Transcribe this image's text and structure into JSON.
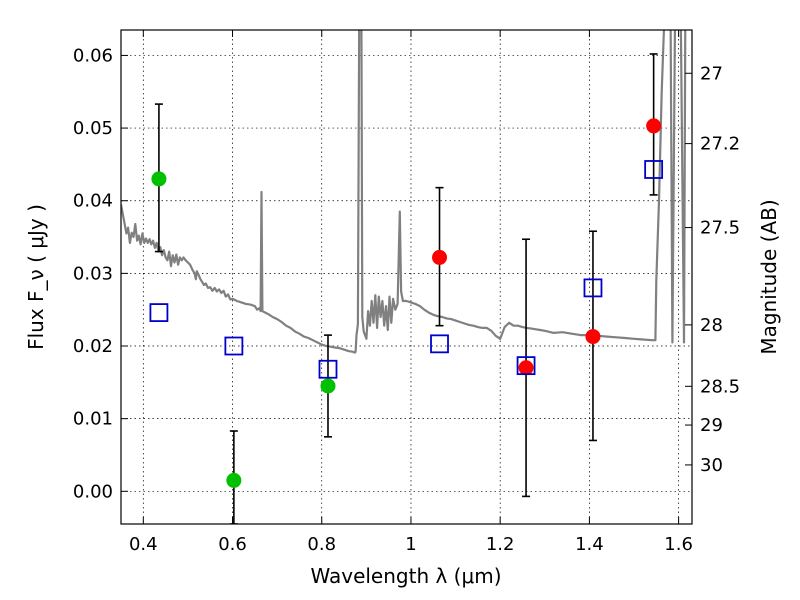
{
  "chart_data": {
    "type": "scatter",
    "xlabel": "Wavelength  λ (μm)",
    "ylabel": "Flux  F_ν  ( μJy )",
    "ylabel_right": "Magnitude (AB)",
    "xlim": [
      0.35,
      1.63
    ],
    "ylim": [
      -0.0045,
      0.0635
    ],
    "grid": true,
    "x_ticks": [
      0.4,
      0.6,
      0.8,
      1.0,
      1.2,
      1.4,
      1.6
    ],
    "x_tick_labels": [
      "0.4",
      "0.6",
      "0.8",
      "1",
      "1.2",
      "1.4",
      "1.6"
    ],
    "y_ticks": [
      0.0,
      0.01,
      0.02,
      0.03,
      0.04,
      0.05,
      0.06
    ],
    "y_tick_labels": [
      "0.00",
      "0.01",
      "0.02",
      "0.03",
      "0.04",
      "0.05",
      "0.06"
    ],
    "right_ticks": [
      27,
      27.2,
      27.5,
      28,
      28.5,
      29,
      30
    ],
    "right_tick_labels": [
      "27",
      "27.2",
      "27.5",
      "28",
      "28.5",
      "29",
      "30"
    ],
    "colors": {
      "template": "#808080",
      "green": "#00c000",
      "red": "#ff0000",
      "model": "#0000cc",
      "errorbar": "#000000"
    },
    "template_spectrum": [
      [
        0.35,
        0.0395
      ],
      [
        0.357,
        0.0372
      ],
      [
        0.362,
        0.0355
      ],
      [
        0.366,
        0.0363
      ],
      [
        0.37,
        0.0342
      ],
      [
        0.374,
        0.0356
      ],
      [
        0.378,
        0.035
      ],
      [
        0.382,
        0.0368
      ],
      [
        0.386,
        0.0345
      ],
      [
        0.39,
        0.0352
      ],
      [
        0.394,
        0.034
      ],
      [
        0.398,
        0.0355
      ],
      [
        0.402,
        0.0342
      ],
      [
        0.406,
        0.0348
      ],
      [
        0.41,
        0.0342
      ],
      [
        0.414,
        0.0347
      ],
      [
        0.418,
        0.034
      ],
      [
        0.422,
        0.0345
      ],
      [
        0.426,
        0.0335
      ],
      [
        0.43,
        0.0342
      ],
      [
        0.434,
        0.033
      ],
      [
        0.438,
        0.0336
      ],
      [
        0.442,
        0.0325
      ],
      [
        0.446,
        0.0332
      ],
      [
        0.45,
        0.0322
      ],
      [
        0.454,
        0.0318
      ],
      [
        0.458,
        0.033
      ],
      [
        0.462,
        0.031
      ],
      [
        0.466,
        0.0325
      ],
      [
        0.47,
        0.0315
      ],
      [
        0.474,
        0.0326
      ],
      [
        0.478,
        0.0312
      ],
      [
        0.482,
        0.0322
      ],
      [
        0.486,
        0.0318
      ],
      [
        0.49,
        0.0322
      ],
      [
        0.495,
        0.0318
      ],
      [
        0.5,
        0.0315
      ],
      [
        0.505,
        0.0312
      ],
      [
        0.51,
        0.0305
      ],
      [
        0.515,
        0.03
      ],
      [
        0.518,
        0.0292
      ],
      [
        0.52,
        0.0303
      ],
      [
        0.524,
        0.0298
      ],
      [
        0.528,
        0.0292
      ],
      [
        0.532,
        0.0288
      ],
      [
        0.536,
        0.0284
      ],
      [
        0.54,
        0.0286
      ],
      [
        0.545,
        0.028
      ],
      [
        0.55,
        0.0281
      ],
      [
        0.555,
        0.0276
      ],
      [
        0.56,
        0.028
      ],
      [
        0.565,
        0.0275
      ],
      [
        0.57,
        0.0278
      ],
      [
        0.575,
        0.0273
      ],
      [
        0.58,
        0.0276
      ],
      [
        0.585,
        0.0268
      ],
      [
        0.59,
        0.0271
      ],
      [
        0.595,
        0.0264
      ],
      [
        0.6,
        0.0265
      ],
      [
        0.61,
        0.0262
      ],
      [
        0.62,
        0.026
      ],
      [
        0.63,
        0.0258
      ],
      [
        0.64,
        0.0257
      ],
      [
        0.65,
        0.0255
      ],
      [
        0.655,
        0.025
      ],
      [
        0.66,
        0.0252
      ],
      [
        0.663,
        0.0248
      ],
      [
        0.665,
        0.0412
      ],
      [
        0.667,
        0.0248
      ],
      [
        0.67,
        0.0247
      ],
      [
        0.68,
        0.0244
      ],
      [
        0.69,
        0.024
      ],
      [
        0.7,
        0.0237
      ],
      [
        0.71,
        0.0233
      ],
      [
        0.72,
        0.0228
      ],
      [
        0.73,
        0.0225
      ],
      [
        0.74,
        0.022
      ],
      [
        0.75,
        0.0217
      ],
      [
        0.76,
        0.0213
      ],
      [
        0.77,
        0.0211
      ],
      [
        0.78,
        0.0208
      ],
      [
        0.79,
        0.0205
      ],
      [
        0.8,
        0.0202
      ],
      [
        0.81,
        0.02
      ],
      [
        0.82,
        0.0199
      ],
      [
        0.83,
        0.0198
      ],
      [
        0.84,
        0.0197
      ],
      [
        0.85,
        0.0195
      ],
      [
        0.86,
        0.0193
      ],
      [
        0.87,
        0.0192
      ],
      [
        0.874,
        0.0191
      ],
      [
        0.876,
        0.0192
      ],
      [
        0.878,
        0.0215
      ],
      [
        0.881,
        0.023
      ],
      [
        0.884,
        0.065
      ],
      [
        0.889,
        0.065
      ],
      [
        0.891,
        0.024
      ],
      [
        0.894,
        0.022
      ],
      [
        0.9,
        0.021
      ],
      [
        0.904,
        0.0248
      ],
      [
        0.908,
        0.0228
      ],
      [
        0.912,
        0.0262
      ],
      [
        0.916,
        0.0232
      ],
      [
        0.92,
        0.027
      ],
      [
        0.924,
        0.0225
      ],
      [
        0.928,
        0.0268
      ],
      [
        0.932,
        0.024
      ],
      [
        0.936,
        0.0262
      ],
      [
        0.94,
        0.0228
      ],
      [
        0.944,
        0.0255
      ],
      [
        0.948,
        0.0222
      ],
      [
        0.952,
        0.0268
      ],
      [
        0.956,
        0.0232
      ],
      [
        0.96,
        0.0265
      ],
      [
        0.965,
        0.025
      ],
      [
        0.97,
        0.0258
      ],
      [
        0.975,
        0.0385
      ],
      [
        0.978,
        0.0275
      ],
      [
        0.982,
        0.0262
      ],
      [
        0.99,
        0.0262
      ],
      [
        1.0,
        0.026
      ],
      [
        1.01,
        0.0258
      ],
      [
        1.02,
        0.0255
      ],
      [
        1.03,
        0.025
      ],
      [
        1.04,
        0.0246
      ],
      [
        1.05,
        0.0243
      ],
      [
        1.06,
        0.0241
      ],
      [
        1.07,
        0.024
      ],
      [
        1.08,
        0.0238
      ],
      [
        1.09,
        0.0237
      ],
      [
        1.1,
        0.0235
      ],
      [
        1.11,
        0.0233
      ],
      [
        1.12,
        0.0231
      ],
      [
        1.13,
        0.0229
      ],
      [
        1.14,
        0.0228
      ],
      [
        1.15,
        0.0226
      ],
      [
        1.16,
        0.0225
      ],
      [
        1.17,
        0.0225
      ],
      [
        1.18,
        0.0221
      ],
      [
        1.19,
        0.0214
      ],
      [
        1.2,
        0.021
      ],
      [
        1.21,
        0.0226
      ],
      [
        1.22,
        0.0232
      ],
      [
        1.23,
        0.0228
      ],
      [
        1.24,
        0.0228
      ],
      [
        1.25,
        0.0226
      ],
      [
        1.26,
        0.0225
      ],
      [
        1.27,
        0.0224
      ],
      [
        1.28,
        0.0223
      ],
      [
        1.29,
        0.0222
      ],
      [
        1.3,
        0.0221
      ],
      [
        1.32,
        0.0218
      ],
      [
        1.34,
        0.0219
      ],
      [
        1.36,
        0.0217
      ],
      [
        1.38,
        0.0215
      ],
      [
        1.4,
        0.0215
      ],
      [
        1.42,
        0.0214
      ],
      [
        1.44,
        0.0213
      ],
      [
        1.46,
        0.0212
      ],
      [
        1.48,
        0.0211
      ],
      [
        1.5,
        0.021
      ],
      [
        1.52,
        0.0209
      ],
      [
        1.54,
        0.0208
      ],
      [
        1.548,
        0.0208
      ],
      [
        1.55,
        0.029
      ],
      [
        1.556,
        0.04
      ],
      [
        1.562,
        0.055
      ],
      [
        1.568,
        0.065
      ],
      [
        1.575,
        0.065
      ],
      [
        1.582,
        0.065
      ],
      [
        1.586,
        0.0205
      ],
      [
        1.592,
        0.065
      ],
      [
        1.6,
        0.065
      ],
      [
        1.605,
        0.065
      ],
      [
        1.612,
        0.0205
      ],
      [
        1.615,
        0.065
      ],
      [
        1.63,
        0.065
      ]
    ],
    "errorbars": [
      {
        "x": 0.435,
        "y": 0.043,
        "low": 0.033,
        "high": 0.0533
      },
      {
        "x": 0.603,
        "y": 0.0015,
        "low": -0.0045,
        "high": 0.0083
      },
      {
        "x": 0.814,
        "y": 0.0145,
        "low": 0.0075,
        "high": 0.0215
      },
      {
        "x": 1.064,
        "y": 0.0322,
        "low": 0.0228,
        "high": 0.0418
      },
      {
        "x": 1.258,
        "y": 0.017,
        "low": -0.0007,
        "high": 0.0347
      },
      {
        "x": 1.408,
        "y": 0.0213,
        "low": 0.007,
        "high": 0.0358
      },
      {
        "x": 1.544,
        "y": 0.0503,
        "low": 0.0408,
        "high": 0.0602
      }
    ],
    "series": [
      {
        "kind": "observed-green",
        "x": [
          0.435,
          0.603,
          0.814
        ],
        "y": [
          0.043,
          0.0015,
          0.0145
        ]
      },
      {
        "kind": "observed-red",
        "x": [
          1.064,
          1.258,
          1.408,
          1.544
        ],
        "y": [
          0.0322,
          0.017,
          0.0213,
          0.0503
        ]
      },
      {
        "kind": "model-squares",
        "x": [
          0.435,
          0.603,
          0.814,
          1.064,
          1.258,
          1.408,
          1.544
        ],
        "y": [
          0.0246,
          0.02,
          0.0168,
          0.0203,
          0.0173,
          0.028,
          0.0443
        ]
      }
    ]
  }
}
